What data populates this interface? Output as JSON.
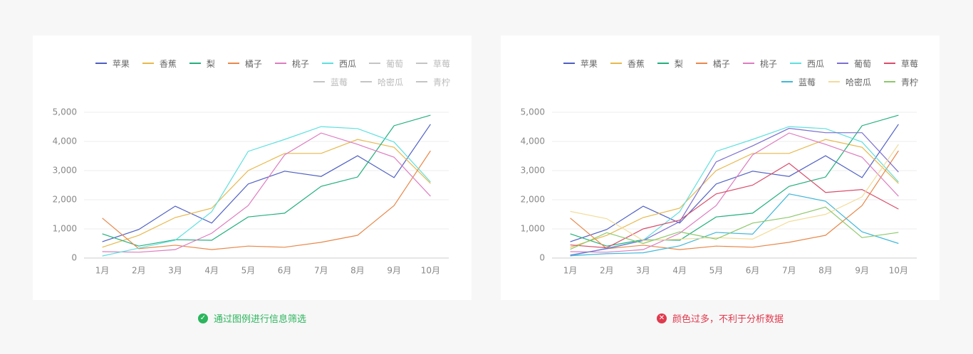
{
  "chart_data": [
    {
      "type": "line",
      "categories": [
        "1月",
        "2月",
        "3月",
        "4月",
        "5月",
        "6月",
        "7月",
        "8月",
        "9月",
        "10月"
      ],
      "ylim": [
        0,
        5000
      ],
      "yticks": [
        0,
        {
          "value": 1000,
          "label": "1,000"
        },
        {
          "value": 2000,
          "label": "2,000"
        },
        {
          "value": 3000,
          "label": "3,000"
        },
        {
          "value": 4000,
          "label": "4,000"
        },
        {
          "value": 5000,
          "label": "5,000"
        }
      ],
      "grid": true,
      "series": [
        {
          "name": "苹果",
          "color": "#4e5fc4",
          "values": [
            560,
            980,
            1780,
            1200,
            2540,
            2980,
            2800,
            3510,
            2760,
            4590
          ]
        },
        {
          "name": "香蕉",
          "color": "#e8b84b",
          "values": [
            370,
            780,
            1390,
            1710,
            3000,
            3590,
            3590,
            4070,
            3800,
            2560
          ]
        },
        {
          "name": "梨",
          "color": "#22b07d",
          "values": [
            830,
            410,
            630,
            610,
            1410,
            1540,
            2460,
            2780,
            4540,
            4900
          ]
        },
        {
          "name": "橘子",
          "color": "#e8884a",
          "values": [
            1370,
            320,
            440,
            290,
            410,
            370,
            540,
            780,
            1800,
            3680
          ]
        },
        {
          "name": "桃子",
          "color": "#de7cc0",
          "values": [
            220,
            200,
            290,
            850,
            1800,
            3540,
            4290,
            3900,
            3460,
            2120
          ]
        },
        {
          "name": "西瓜",
          "color": "#5ee0e0",
          "values": [
            70,
            340,
            610,
            1590,
            3660,
            4070,
            4510,
            4440,
            3980,
            2610
          ]
        },
        {
          "name": "葡萄",
          "color": "#c4c4c4",
          "visible": false
        },
        {
          "name": "草莓",
          "color": "#c4c4c4",
          "visible": false
        },
        {
          "name": "蓝莓",
          "color": "#c4c4c4",
          "visible": false
        },
        {
          "name": "哈密瓜",
          "color": "#c4c4c4",
          "visible": false
        },
        {
          "name": "青柠",
          "color": "#c4c4c4",
          "visible": false
        }
      ],
      "caption": {
        "text": "通过图例进行信息筛选",
        "status": "ok"
      }
    },
    {
      "type": "line",
      "categories": [
        "1月",
        "2月",
        "3月",
        "4月",
        "5月",
        "6月",
        "7月",
        "8月",
        "9月",
        "10月"
      ],
      "ylim": [
        0,
        5000
      ],
      "yticks": [
        0,
        {
          "value": 1000,
          "label": "1,000"
        },
        {
          "value": 2000,
          "label": "2,000"
        },
        {
          "value": 3000,
          "label": "3,000"
        },
        {
          "value": 4000,
          "label": "4,000"
        },
        {
          "value": 5000,
          "label": "5,000"
        }
      ],
      "grid": true,
      "series": [
        {
          "name": "苹果",
          "color": "#4e5fc4",
          "values": [
            560,
            980,
            1780,
            1200,
            2540,
            2980,
            2800,
            3510,
            2760,
            4590
          ]
        },
        {
          "name": "香蕉",
          "color": "#e8b84b",
          "values": [
            370,
            780,
            1390,
            1710,
            3000,
            3590,
            3590,
            4070,
            3800,
            2560
          ]
        },
        {
          "name": "梨",
          "color": "#22b07d",
          "values": [
            830,
            410,
            630,
            610,
            1410,
            1540,
            2460,
            2780,
            4540,
            4900
          ]
        },
        {
          "name": "橘子",
          "color": "#e8884a",
          "values": [
            1370,
            320,
            440,
            290,
            410,
            370,
            540,
            780,
            1800,
            3680
          ]
        },
        {
          "name": "桃子",
          "color": "#de7cc0",
          "values": [
            220,
            200,
            290,
            850,
            1800,
            3540,
            4290,
            3900,
            3460,
            2120
          ]
        },
        {
          "name": "西瓜",
          "color": "#5ee0e0",
          "values": [
            70,
            340,
            610,
            1590,
            3660,
            4070,
            4510,
            4440,
            3980,
            2610
          ]
        },
        {
          "name": "葡萄",
          "color": "#7c6fd0",
          "values": [
            100,
            320,
            600,
            1250,
            3300,
            3850,
            4450,
            4300,
            4300,
            2950
          ]
        },
        {
          "name": "草莓",
          "color": "#d94d6a",
          "values": [
            450,
            350,
            1000,
            1300,
            2200,
            2500,
            3250,
            2250,
            2350,
            1680
          ]
        },
        {
          "name": "蓝莓",
          "color": "#3fb8d9",
          "values": [
            80,
            150,
            180,
            420,
            880,
            820,
            2200,
            1950,
            900,
            500
          ]
        },
        {
          "name": "哈密瓜",
          "color": "#f3dc9a",
          "values": [
            1600,
            1350,
            600,
            650,
            700,
            650,
            1250,
            1500,
            2100,
            3900
          ]
        },
        {
          "name": "青柠",
          "color": "#8cc86a",
          "values": [
            300,
            870,
            500,
            900,
            650,
            1200,
            1400,
            1750,
            700,
            880
          ]
        }
      ],
      "caption": {
        "text": "颜色过多，不利于分析数据",
        "status": "error"
      }
    }
  ]
}
